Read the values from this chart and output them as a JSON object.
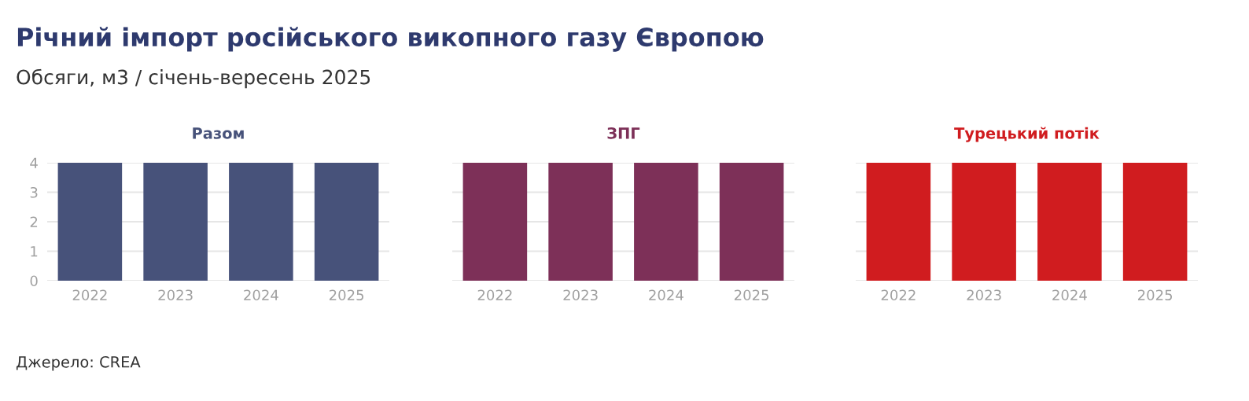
{
  "chart_data": [
    {
      "type": "bar",
      "title": "Річний імпорт російського викопного газу Європою",
      "subtitle": "Обсяги, м3 / січень-вересень 2025",
      "annotations": [
        "Джерело: CREA"
      ],
      "categories": [
        "2022",
        "2023",
        "2024",
        "2025"
      ],
      "series": [
        {
          "name": "Разом",
          "color": "#47527a",
          "values": [
            4,
            4,
            4,
            4
          ]
        }
      ],
      "ylim": [
        0,
        4
      ],
      "yticks": [
        0,
        1,
        2,
        3,
        4
      ],
      "grid": "y",
      "legend": false
    },
    {
      "type": "bar",
      "categories": [
        "2022",
        "2023",
        "2024",
        "2025"
      ],
      "series": [
        {
          "name": "ЗПГ",
          "color": "#7d3058",
          "values": [
            4,
            4,
            4,
            4
          ]
        }
      ],
      "ylim": [
        0,
        4
      ],
      "yticks": [
        0,
        1,
        2,
        3,
        4
      ],
      "grid": "y",
      "legend": false,
      "tick_labels": "x"
    },
    {
      "type": "bar",
      "categories": [
        "2022",
        "2023",
        "2024",
        "2025"
      ],
      "series": [
        {
          "name": "Турецький потік",
          "color": "#d01c1f",
          "values": [
            4,
            4,
            4,
            4
          ]
        }
      ],
      "ylim": [
        0,
        4
      ],
      "yticks": [
        0,
        1,
        2,
        3,
        4
      ],
      "grid": "y",
      "legend": false,
      "tick_labels": "x"
    }
  ]
}
